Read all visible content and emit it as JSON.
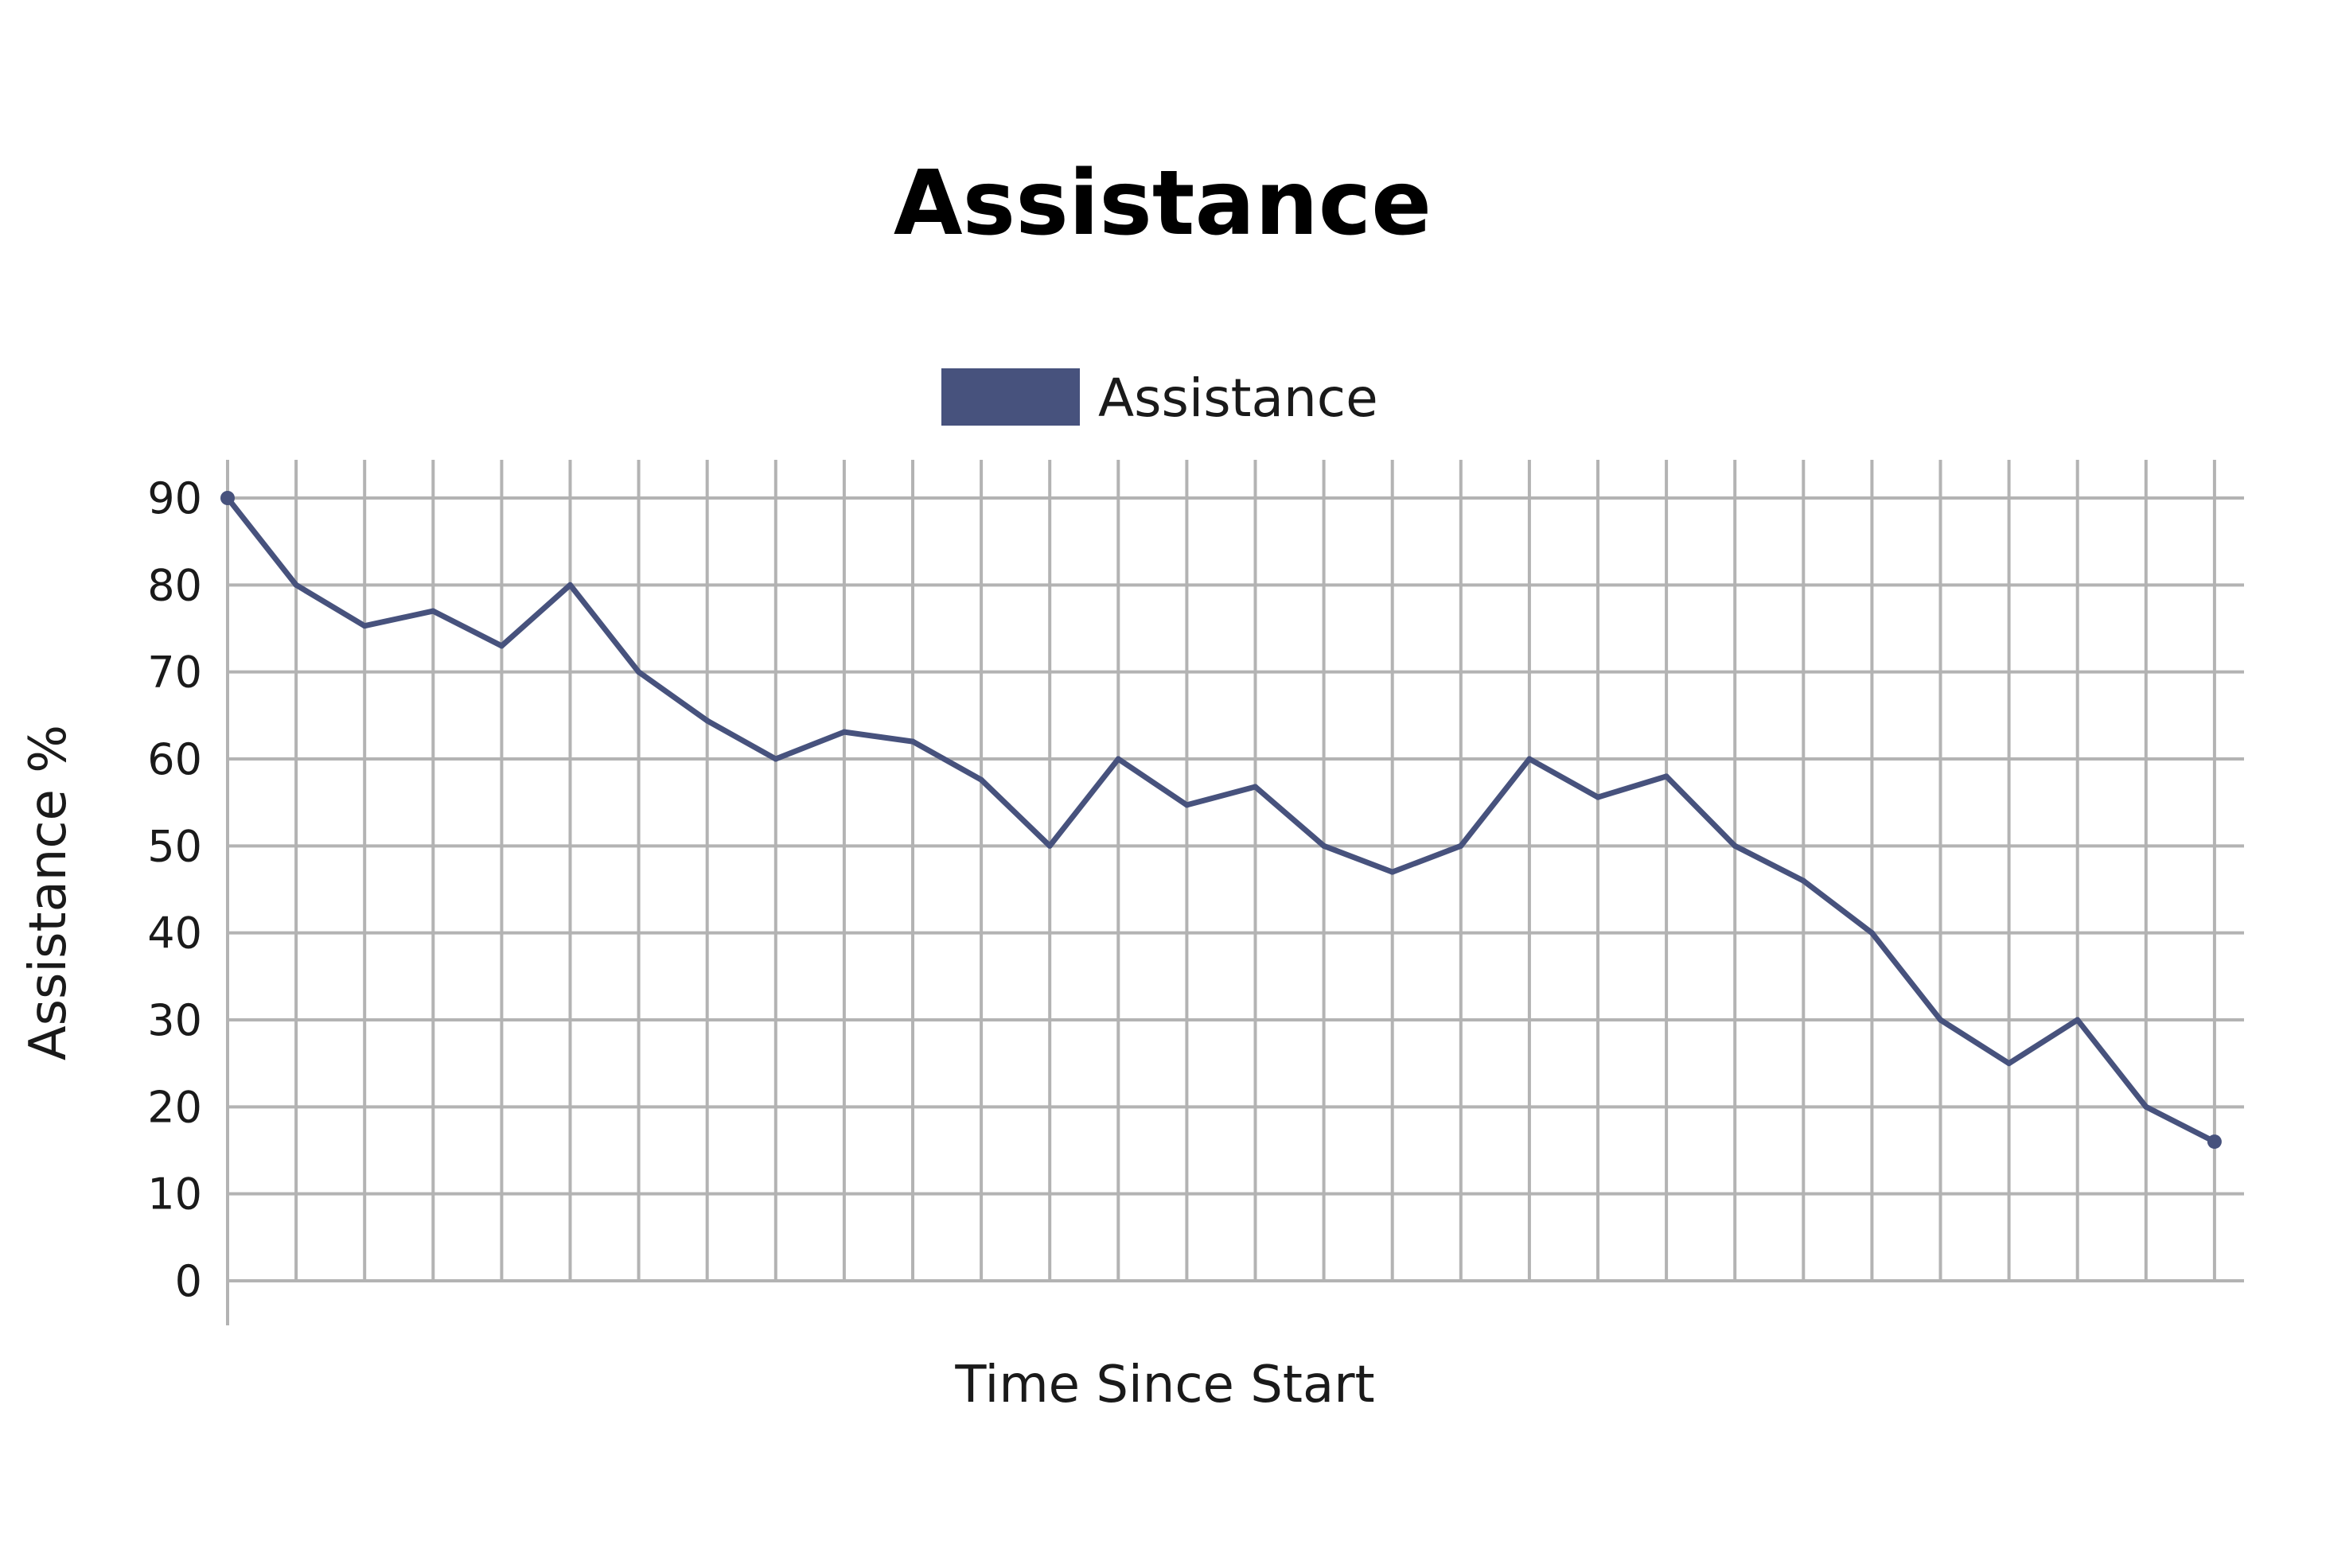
{
  "colors": {
    "series": "#47527d",
    "grid": "#b3b3b3",
    "text": "#1a1a1a",
    "background": "#ffffff"
  },
  "chart_data": {
    "type": "line",
    "title": "Assistance",
    "xlabel": "Time Since Start",
    "ylabel": "Assistance %",
    "ylim": [
      0,
      90
    ],
    "yticks": [
      0,
      10,
      20,
      30,
      40,
      50,
      60,
      70,
      80,
      90
    ],
    "xticks_labeled": false,
    "grid": true,
    "legend_position": "top-center",
    "x": [
      1,
      2,
      3,
      4,
      5,
      6,
      7,
      8,
      9,
      10,
      11,
      12,
      13,
      14,
      15,
      16,
      17,
      18,
      19,
      20,
      21,
      22,
      23,
      24,
      25,
      26,
      27,
      28,
      29,
      30
    ],
    "series": [
      {
        "name": "Assistance",
        "color": "#47527d",
        "values": [
          90,
          80,
          75.3,
          77,
          73,
          80,
          70,
          64.4,
          60,
          63.1,
          62,
          57.6,
          50,
          60,
          54.7,
          56.8,
          50,
          47,
          50,
          60,
          55.6,
          58,
          50,
          46,
          40,
          30,
          25,
          30,
          20,
          16
        ]
      }
    ]
  }
}
